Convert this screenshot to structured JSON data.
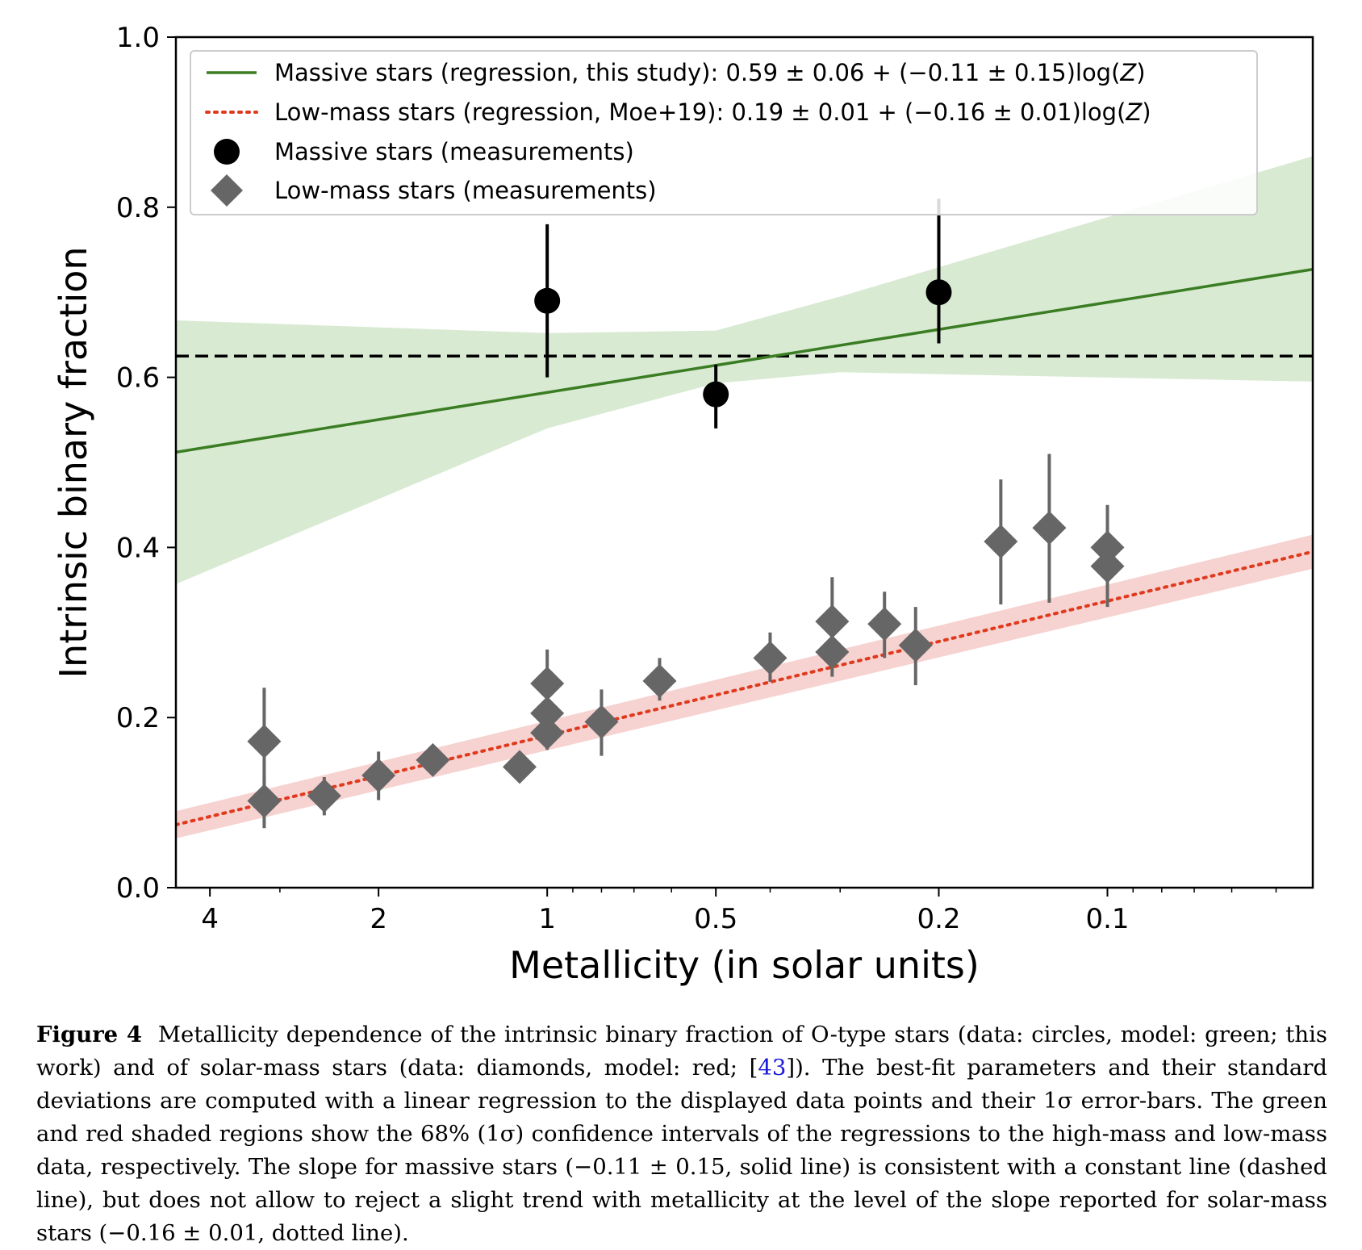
{
  "chart_data": {
    "type": "scatter",
    "xlabel": "Metallicity (in solar units)",
    "ylabel": "Intrinsic binary fraction",
    "x_scale": "log",
    "x_reversed": true,
    "xlim": [
      4.6,
      0.043
    ],
    "ylim": [
      0.0,
      1.0
    ],
    "x_ticks": [
      {
        "value": 4,
        "label": "4"
      },
      {
        "value": 2,
        "label": "2"
      },
      {
        "value": 1,
        "label": "1"
      },
      {
        "value": 0.5,
        "label": "0.5"
      },
      {
        "value": 0.2,
        "label": "0.2"
      },
      {
        "value": 0.1,
        "label": "0.1"
      }
    ],
    "x_minor_ticks": [
      3,
      0.9,
      0.8,
      0.7,
      0.6,
      0.4,
      0.3,
      0.09,
      0.08,
      0.07,
      0.06,
      0.05
    ],
    "y_ticks": [
      {
        "value": 0.0,
        "label": "0.0"
      },
      {
        "value": 0.2,
        "label": "0.2"
      },
      {
        "value": 0.4,
        "label": "0.4"
      },
      {
        "value": 0.6,
        "label": "0.6"
      },
      {
        "value": 0.8,
        "label": "0.8"
      },
      {
        "value": 1.0,
        "label": "1.0"
      }
    ],
    "constant_line": {
      "y": 0.625,
      "color": "#000000",
      "style": "dashed"
    },
    "massive_regression": {
      "label": "Massive stars (regression, this study): 0.59 ± 0.06 + (−0.11 ± 0.15)log(Z)",
      "color": "#3a7d22",
      "line": [
        [
          4.6,
          0.512
        ],
        [
          0.043,
          0.727
        ]
      ],
      "band_color": "#d9ead3",
      "band_upper": [
        [
          4.6,
          0.667
        ],
        [
          1.0,
          0.652
        ],
        [
          0.5,
          0.655
        ],
        [
          0.3,
          0.695
        ],
        [
          0.043,
          0.86
        ]
      ],
      "band_lower": [
        [
          4.6,
          0.357
        ],
        [
          1.0,
          0.54
        ],
        [
          0.5,
          0.593
        ],
        [
          0.3,
          0.606
        ],
        [
          0.043,
          0.595
        ]
      ]
    },
    "lowmass_regression": {
      "label": "Low-mass stars (regression, Moe+19): 0.19 ± 0.01 + (−0.16 ± 0.01)log(Z)",
      "color": "#e03a1e",
      "line": [
        [
          4.6,
          0.074
        ],
        [
          0.043,
          0.395
        ]
      ],
      "band_color": "#f6d2d0",
      "band_upper": [
        [
          4.6,
          0.09
        ],
        [
          0.043,
          0.415
        ]
      ],
      "band_lower": [
        [
          4.6,
          0.058
        ],
        [
          0.043,
          0.375
        ]
      ]
    },
    "series": [
      {
        "name": "Massive stars (measurements)",
        "marker": "circle",
        "color": "#000000",
        "points": [
          {
            "x": 1.0,
            "y": 0.69,
            "lo": 0.6,
            "hi": 0.78
          },
          {
            "x": 0.5,
            "y": 0.58,
            "lo": 0.54,
            "hi": 0.615
          },
          {
            "x": 0.2,
            "y": 0.7,
            "lo": 0.64,
            "hi": 0.81
          }
        ]
      },
      {
        "name": "Low-mass stars (measurements)",
        "marker": "diamond",
        "color": "#666666",
        "points": [
          {
            "x": 3.2,
            "y": 0.172,
            "lo": 0.12,
            "hi": 0.235
          },
          {
            "x": 3.2,
            "y": 0.102,
            "lo": 0.07,
            "hi": 0.13
          },
          {
            "x": 2.5,
            "y": 0.108,
            "lo": 0.085,
            "hi": 0.13
          },
          {
            "x": 2.0,
            "y": 0.132,
            "lo": 0.103,
            "hi": 0.16
          },
          {
            "x": 1.6,
            "y": 0.15,
            "lo": null,
            "hi": null
          },
          {
            "x": 1.12,
            "y": 0.142,
            "lo": null,
            "hi": null
          },
          {
            "x": 1.0,
            "y": 0.24,
            "lo": 0.2,
            "hi": 0.28
          },
          {
            "x": 1.0,
            "y": 0.205,
            "lo": 0.17,
            "hi": 0.245
          },
          {
            "x": 1.0,
            "y": 0.182,
            "lo": 0.162,
            "hi": 0.205
          },
          {
            "x": 0.8,
            "y": 0.195,
            "lo": 0.155,
            "hi": 0.233
          },
          {
            "x": 0.63,
            "y": 0.243,
            "lo": 0.22,
            "hi": 0.27
          },
          {
            "x": 0.4,
            "y": 0.27,
            "lo": 0.242,
            "hi": 0.3
          },
          {
            "x": 0.31,
            "y": 0.313,
            "lo": 0.27,
            "hi": 0.365
          },
          {
            "x": 0.31,
            "y": 0.277,
            "lo": 0.248,
            "hi": 0.3
          },
          {
            "x": 0.25,
            "y": 0.31,
            "lo": 0.27,
            "hi": 0.348
          },
          {
            "x": 0.22,
            "y": 0.285,
            "lo": 0.238,
            "hi": 0.33
          },
          {
            "x": 0.155,
            "y": 0.407,
            "lo": 0.333,
            "hi": 0.48
          },
          {
            "x": 0.127,
            "y": 0.423,
            "lo": 0.335,
            "hi": 0.51
          },
          {
            "x": 0.1,
            "y": 0.4,
            "lo": 0.36,
            "hi": 0.45
          },
          {
            "x": 0.1,
            "y": 0.378,
            "lo": 0.33,
            "hi": 0.41
          }
        ]
      }
    ],
    "legend": {
      "position": "top-left",
      "entries": [
        {
          "label": "Massive stars (regression, this study): 0.59 ± 0.06 + (−0.11 ± 0.15)log(",
          "italic": "Z",
          "suffix": ")",
          "kind": "line-solid-green"
        },
        {
          "label": "Low-mass stars (regression, Moe+19): 0.19 ± 0.01 + (−0.16 ± 0.01)log(",
          "italic": "Z",
          "suffix": ")",
          "kind": "line-dotted-red"
        },
        {
          "label": "Massive stars (measurements)",
          "kind": "marker-circle"
        },
        {
          "label": "Low-mass stars (measurements)",
          "kind": "marker-diamond"
        }
      ]
    }
  },
  "caption": {
    "figure_label": "Figure 4",
    "text_before_ref": "Metallicity dependence of the intrinsic binary fraction of O-type stars (data: circles, model: green; this work) and of solar-mass stars (data: diamonds, model: red; [",
    "ref": "43",
    "text_after_ref": "]). The best-fit parameters and their standard deviations are computed with a linear regression to the displayed data points and their 1σ error-bars. The green and red shaded regions show the 68% (1σ) confidence intervals of the regressions to the high-mass and low-mass data, respectively. The slope for massive stars (−0.11 ± 0.15, solid line) is consistent with a constant line (dashed line), but does not allow to reject a slight trend with metallicity at the level of the slope reported for solar-mass stars (−0.16 ± 0.01, dotted line)."
  }
}
